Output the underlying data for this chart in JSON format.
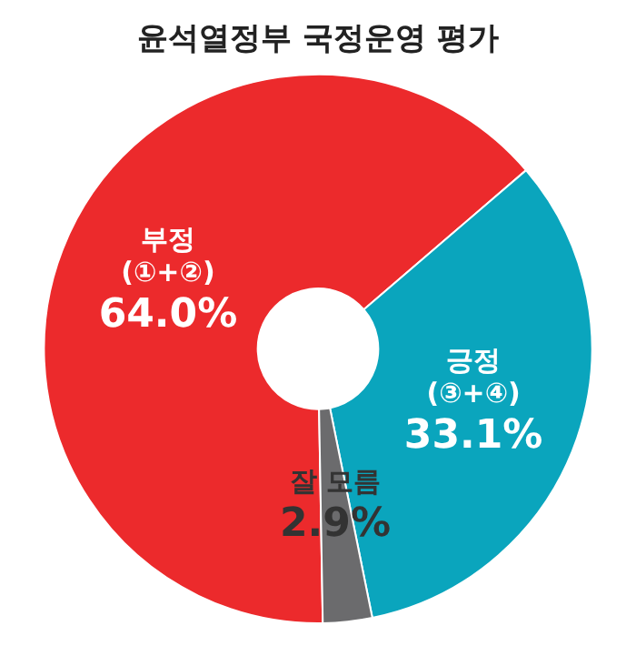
{
  "chart_data": {
    "type": "donut",
    "title": "윤석열정부 국정운영 평가",
    "categories": [
      "부정\n(①+②)",
      "긍정\n(③+④)",
      "잘 모름"
    ],
    "values": [
      64.0,
      33.1,
      2.9
    ],
    "colors": [
      "#ec2a2c",
      "#0aa5bd",
      "#6b6b6d"
    ],
    "value_labels": [
      "64.0%",
      "33.1%",
      "2.9%"
    ],
    "legend": false
  }
}
